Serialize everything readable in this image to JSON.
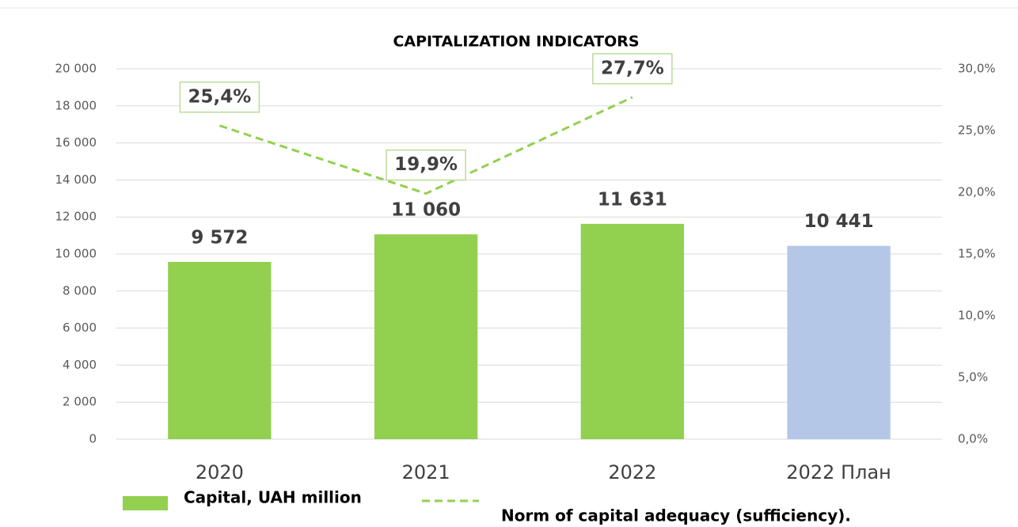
{
  "chart_data": {
    "type": "bar",
    "title": "CAPITALIZATION INDICATORS",
    "categories": [
      "2020",
      "2021",
      "2022",
      "2022 План"
    ],
    "series": [
      {
        "name": "Capital, UAH million",
        "type": "bar",
        "colors": [
          "#92d050",
          "#92d050",
          "#92d050",
          "#b4c7e7"
        ],
        "values": [
          9572,
          11060,
          11631,
          10441
        ],
        "value_labels": [
          "9 572",
          "11 060",
          "11 631",
          "10 441"
        ]
      },
      {
        "name": "Norm of capital adequacy (sufficiency).",
        "type": "line",
        "axis": "y2",
        "color": "#92d050",
        "values": [
          25.4,
          19.9,
          27.7,
          null
        ],
        "value_labels": [
          "25,4%",
          "19,9%",
          "27,7%",
          null
        ]
      }
    ],
    "ylim": [
      0,
      20000
    ],
    "yticks": [
      0,
      {
        "value": 2000,
        "label": "2 000"
      },
      {
        "value": 4000,
        "label": "4 000"
      },
      {
        "value": 6000,
        "label": "6 000"
      },
      {
        "value": 8000,
        "label": "8 000"
      },
      {
        "value": 10000,
        "label": "10 000"
      },
      {
        "value": 12000,
        "label": "12 000"
      },
      {
        "value": 14000,
        "label": "14 000"
      },
      {
        "value": 16000,
        "label": "16 000"
      },
      {
        "value": 18000,
        "label": "18 000"
      },
      {
        "value": 20000,
        "label": "20 000"
      }
    ],
    "y2lim": [
      0,
      30
    ],
    "y2ticks": [
      {
        "value": 0,
        "label": "0,0%"
      },
      {
        "value": 5,
        "label": "5,0%"
      },
      {
        "value": 10,
        "label": "10,0%"
      },
      {
        "value": 15,
        "label": "15,0%"
      },
      {
        "value": 20,
        "label": "20,0%"
      },
      {
        "value": 25,
        "label": "25,0%"
      },
      {
        "value": 30,
        "label": "30,0%"
      }
    ],
    "grid": true
  }
}
